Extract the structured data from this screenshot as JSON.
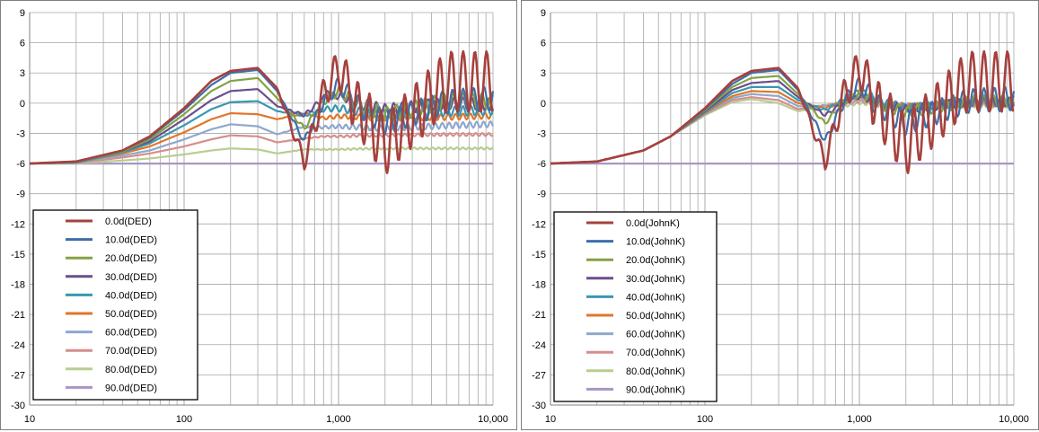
{
  "chart_data": [
    {
      "type": "line",
      "x_scale": "log",
      "xlim": [
        10,
        10000
      ],
      "ylim": [
        -30,
        9
      ],
      "x_ticks": [
        "10",
        "100",
        "1,000",
        "10,000"
      ],
      "y_ticks": [
        "9",
        "6",
        "3",
        "0",
        "-3",
        "-6",
        "-9",
        "-12",
        "-15",
        "-18",
        "-21",
        "-24",
        "-27",
        "-30"
      ],
      "grid": true,
      "legend_position": "bottom-left",
      "x": [
        10,
        20,
        40,
        60,
        100,
        150,
        200,
        300,
        400,
        600,
        800,
        1000,
        2000,
        5000,
        10000
      ],
      "series": [
        {
          "name": "0.0d(DED)",
          "color": "#a6403c",
          "values": [
            -6.0,
            -5.8,
            -4.7,
            -3.3,
            -0.5,
            2.2,
            3.2,
            3.5,
            1.5,
            -5.8,
            1.0,
            3.5,
            -5.5,
            3.5,
            3.5
          ]
        },
        {
          "name": "10.0d(DED)",
          "color": "#3e6ea8",
          "values": [
            -6.0,
            -5.8,
            -4.7,
            -3.4,
            -0.7,
            1.8,
            3.0,
            3.3,
            1.2,
            -3.8,
            0.2,
            1.8,
            -2.5,
            0.5,
            1.0
          ]
        },
        {
          "name": "20.0d(DED)",
          "color": "#84a244",
          "values": [
            -6.0,
            -5.8,
            -4.8,
            -3.6,
            -1.1,
            1.2,
            2.2,
            2.5,
            0.5,
            -2.5,
            0.2,
            1.2,
            -1.5,
            0.5,
            0.5
          ]
        },
        {
          "name": "30.0d(DED)",
          "color": "#6a4f8c",
          "values": [
            -6.0,
            -5.8,
            -4.8,
            -3.8,
            -1.6,
            0.3,
            1.2,
            1.4,
            -0.3,
            -1.2,
            0.5,
            0.8,
            -0.8,
            0.2,
            0.0
          ]
        },
        {
          "name": "40.0d(DED)",
          "color": "#3a97b0",
          "values": [
            -6.0,
            -5.9,
            -4.9,
            -4.0,
            -2.2,
            -0.6,
            0.1,
            0.2,
            -0.8,
            -1.2,
            -0.6,
            -0.5,
            -1.2,
            -0.8,
            -0.6
          ]
        },
        {
          "name": "50.0d(DED)",
          "color": "#e0762a",
          "values": [
            -6.0,
            -5.9,
            -5.0,
            -4.3,
            -2.9,
            -1.6,
            -1.0,
            -1.1,
            -1.6,
            -1.0,
            -1.5,
            -1.3,
            -1.5,
            -1.4,
            -1.2
          ]
        },
        {
          "name": "60.0d(DED)",
          "color": "#8fa8cd",
          "values": [
            -6.0,
            -5.9,
            -5.2,
            -4.7,
            -3.6,
            -2.6,
            -2.1,
            -2.3,
            -3.1,
            -2.3,
            -2.4,
            -2.3,
            -2.6,
            -2.2,
            -2.0
          ]
        },
        {
          "name": "70.0d(DED)",
          "color": "#d58e8c",
          "values": [
            -6.0,
            -5.95,
            -5.4,
            -5.0,
            -4.3,
            -3.6,
            -3.2,
            -3.3,
            -3.9,
            -3.5,
            -3.3,
            -3.3,
            -3.2,
            -3.1,
            -3.1
          ]
        },
        {
          "name": "80.0d(DED)",
          "color": "#b8cd90",
          "values": [
            -6.0,
            -5.98,
            -5.7,
            -5.5,
            -5.1,
            -4.7,
            -4.5,
            -4.6,
            -5.0,
            -4.6,
            -4.6,
            -4.6,
            -4.5,
            -4.5,
            -4.5
          ]
        },
        {
          "name": "90.0d(DED)",
          "color": "#a896c4",
          "values": [
            -6.0,
            -6.0,
            -6.0,
            -6.0,
            -6.0,
            -6.0,
            -6.0,
            -6.0,
            -6.0,
            -6.0,
            -6.0,
            -6.0,
            -6.0,
            -6.0,
            -6.0
          ]
        }
      ]
    },
    {
      "type": "line",
      "x_scale": "log",
      "xlim": [
        10,
        10000
      ],
      "ylim": [
        -30,
        9
      ],
      "x_ticks": [
        "10",
        "100",
        "1,000",
        "10,000"
      ],
      "y_ticks": [
        "9",
        "6",
        "3",
        "0",
        "-3",
        "-6",
        "-9",
        "-12",
        "-15",
        "-18",
        "-21",
        "-24",
        "-27",
        "-30"
      ],
      "grid": true,
      "legend_position": "bottom-left",
      "x": [
        10,
        20,
        40,
        60,
        100,
        150,
        200,
        300,
        400,
        600,
        800,
        1000,
        2000,
        5000,
        10000
      ],
      "series": [
        {
          "name": "0.0d(JohnK)",
          "color": "#a6403c",
          "values": [
            -6.0,
            -5.8,
            -4.7,
            -3.3,
            -0.5,
            2.2,
            3.2,
            3.5,
            1.5,
            -5.8,
            1.0,
            3.5,
            -5.5,
            3.5,
            3.5
          ]
        },
        {
          "name": "10.0d(JohnK)",
          "color": "#3e6ea8",
          "values": [
            -6.0,
            -5.8,
            -4.7,
            -3.3,
            -0.6,
            1.9,
            3.0,
            3.3,
            1.3,
            -3.8,
            0.3,
            1.8,
            -2.5,
            0.6,
            1.0
          ]
        },
        {
          "name": "20.0d(JohnK)",
          "color": "#84a244",
          "values": [
            -6.0,
            -5.8,
            -4.7,
            -3.3,
            -0.7,
            1.6,
            2.5,
            2.7,
            0.9,
            -2.0,
            0.2,
            1.0,
            -1.2,
            0.4,
            0.5
          ]
        },
        {
          "name": "30.0d(JohnK)",
          "color": "#6a4f8c",
          "values": [
            -6.0,
            -5.8,
            -4.7,
            -3.3,
            -0.8,
            1.3,
            2.0,
            2.2,
            0.6,
            -1.2,
            0.1,
            0.7,
            -0.8,
            0.3,
            0.3
          ]
        },
        {
          "name": "40.0d(JohnK)",
          "color": "#3a97b0",
          "values": [
            -6.0,
            -5.8,
            -4.7,
            -3.3,
            -0.9,
            1.0,
            1.6,
            1.6,
            0.3,
            -0.7,
            0.4,
            1.2,
            -0.6,
            0.2,
            0.2
          ]
        },
        {
          "name": "50.0d(JohnK)",
          "color": "#e0762a",
          "values": [
            -6.0,
            -5.8,
            -4.7,
            -3.3,
            -1.0,
            0.7,
            1.2,
            1.1,
            0.0,
            -0.5,
            0.2,
            0.8,
            -0.4,
            0.1,
            0.0
          ]
        },
        {
          "name": "60.0d(JohnK)",
          "color": "#8fa8cd",
          "values": [
            -6.0,
            -5.8,
            -4.7,
            -3.3,
            -1.1,
            0.5,
            0.9,
            0.7,
            -0.3,
            -0.3,
            0.1,
            0.5,
            -0.3,
            0.0,
            0.0
          ]
        },
        {
          "name": "70.0d(JohnK)",
          "color": "#d58e8c",
          "values": [
            -6.0,
            -5.8,
            -4.7,
            -3.3,
            -1.1,
            0.3,
            0.6,
            0.3,
            -0.6,
            -0.2,
            -0.1,
            0.2,
            -0.4,
            -0.1,
            -0.1
          ]
        },
        {
          "name": "80.0d(JohnK)",
          "color": "#b8cd90",
          "values": [
            -6.0,
            -5.8,
            -4.7,
            -3.3,
            -1.2,
            0.1,
            0.4,
            0.0,
            -0.8,
            -0.3,
            -0.3,
            0.0,
            -0.5,
            -0.2,
            -0.2
          ]
        },
        {
          "name": "90.0d(JohnK)",
          "color": "#a896c4",
          "values": [
            -6.0,
            -6.0,
            -6.0,
            -6.0,
            -6.0,
            -6.0,
            -6.0,
            -6.0,
            -6.0,
            -6.0,
            -6.0,
            -6.0,
            -6.0,
            -6.0,
            -6.0
          ]
        }
      ]
    }
  ]
}
